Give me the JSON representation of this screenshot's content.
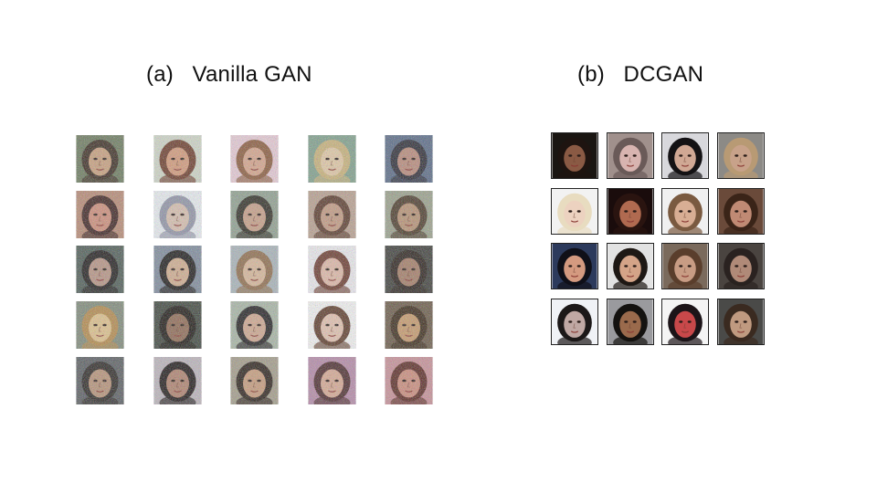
{
  "panels": {
    "a": {
      "label": "(a)",
      "title": "Vanilla GAN"
    },
    "b": {
      "label": "(b)",
      "title": "DCGAN"
    }
  },
  "vanilla_grid": {
    "rows": 5,
    "cols": 5,
    "tiles": [
      {
        "bg": "#6b7a5e",
        "skin": "#c9a07e",
        "hair": "#3a2c22"
      },
      {
        "bg": "#cfd6c8",
        "skin": "#d49a7a",
        "hair": "#6b3b2a"
      },
      {
        "bg": "#e7cbd6",
        "skin": "#d7a58c",
        "hair": "#8a5a3c"
      },
      {
        "bg": "#7fa08c",
        "skin": "#e2c9a6",
        "hair": "#c9b27a"
      },
      {
        "bg": "#586a86",
        "skin": "#b98a7a",
        "hair": "#2a2a34"
      },
      {
        "bg": "#b88a74",
        "skin": "#cf8e7a",
        "hair": "#3c2220"
      },
      {
        "bg": "#e9eef2",
        "skin": "#d8c0b0",
        "hair": "#8f93a6"
      },
      {
        "bg": "#8fa090",
        "skin": "#c8a088",
        "hair": "#2e2c24"
      },
      {
        "bg": "#b9a090",
        "skin": "#c39a82",
        "hair": "#5a3a2c"
      },
      {
        "bg": "#9aa18c",
        "skin": "#b89274",
        "hair": "#4a3a2a"
      },
      {
        "bg": "#4e5c56",
        "skin": "#b89484",
        "hair": "#1f1c1c"
      },
      {
        "bg": "#7d8a9c",
        "skin": "#d2ae90",
        "hair": "#1c1a1a"
      },
      {
        "bg": "#a9b4ba",
        "skin": "#d9b89a",
        "hair": "#8e6c4c"
      },
      {
        "bg": "#ecebef",
        "skin": "#e0b9a8",
        "hair": "#6a3a2e"
      },
      {
        "bg": "#3d3e3a",
        "skin": "#a47c66",
        "hair": "#2a211c"
      },
      {
        "bg": "#7f8a7a",
        "skin": "#e0c28c",
        "hair": "#b48a4c"
      },
      {
        "bg": "#3e463e",
        "skin": "#8f6a54",
        "hair": "#1c1814"
      },
      {
        "bg": "#a8b6a6",
        "skin": "#d0a890",
        "hair": "#222022"
      },
      {
        "bg": "#f4f4f4",
        "skin": "#e3c2b0",
        "hair": "#5c3a2a"
      },
      {
        "bg": "#6a5a48",
        "skin": "#c79a6c",
        "hair": "#3a2a1a"
      },
      {
        "bg": "#5a5e62",
        "skin": "#b79278",
        "hair": "#2c2826"
      },
      {
        "bg": "#bcb5bc",
        "skin": "#b0826e",
        "hair": "#1e1818"
      },
      {
        "bg": "#a39c8a",
        "skin": "#c89c7c",
        "hair": "#2a201a"
      },
      {
        "bg": "#b58aa8",
        "skin": "#d8aa94",
        "hair": "#4a2a2c"
      },
      {
        "bg": "#c89098",
        "skin": "#cc8c7c",
        "hair": "#5a2a24"
      }
    ]
  },
  "dcgan_grid": {
    "rows": 4,
    "cols": 4,
    "tiles": [
      {
        "bg": "#1a1612",
        "skin": "#8a5a44",
        "hair": "#1e1410"
      },
      {
        "bg": "#a0908c",
        "skin": "#d8b4b0",
        "hair": "#6a5a58"
      },
      {
        "bg": "#d8d8dc",
        "skin": "#d0a894",
        "hair": "#141214"
      },
      {
        "bg": "#8c8a86",
        "skin": "#c8a28a",
        "hair": "#b89a74"
      },
      {
        "bg": "#f2f2f2",
        "skin": "#ecd2c0",
        "hair": "#e8dcc0"
      },
      {
        "bg": "#1a0c0c",
        "skin": "#b06a50",
        "hair": "#2a1410"
      },
      {
        "bg": "#f0f0f0",
        "skin": "#d8ae94",
        "hair": "#7a5a40"
      },
      {
        "bg": "#6a4a3a",
        "skin": "#c08a74",
        "hair": "#3a2418"
      },
      {
        "bg": "#2c3a5c",
        "skin": "#d49a80",
        "hair": "#101018"
      },
      {
        "bg": "#e2e2e2",
        "skin": "#d4a488",
        "hair": "#1e1814"
      },
      {
        "bg": "#7a6a5c",
        "skin": "#c89c84",
        "hair": "#5a3e2c"
      },
      {
        "bg": "#4a4440",
        "skin": "#b08a78",
        "hair": "#2a2220"
      },
      {
        "bg": "#f0f2f6",
        "skin": "#c0a8a4",
        "hair": "#1c1818"
      },
      {
        "bg": "#9a9a9e",
        "skin": "#9a6a4c",
        "hair": "#141210"
      },
      {
        "bg": "#f4f4f4",
        "skin": "#c8484a",
        "hair": "#1c1418"
      },
      {
        "bg": "#4a4a48",
        "skin": "#c09a80",
        "hair": "#3a2a20"
      }
    ]
  }
}
